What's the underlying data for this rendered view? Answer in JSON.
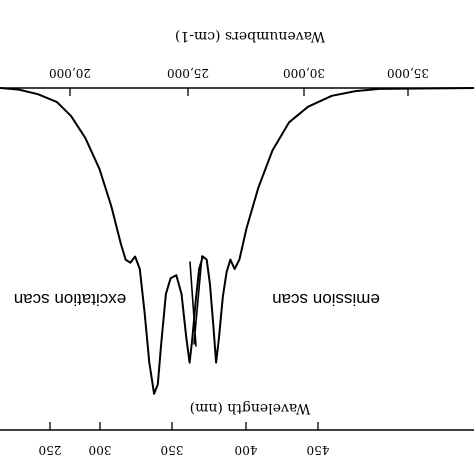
{
  "chart_data": {
    "type": "line",
    "top_axis": {
      "label": "Wavenumbers (cm-1)",
      "ticks": [
        "20,000",
        "25,000",
        "30,000",
        "35,000"
      ]
    },
    "bottom_axis": {
      "label": "Wavelength (nm)",
      "ticks": [
        "250",
        "300",
        "350",
        "400",
        "450"
      ]
    },
    "annotations": [
      "excitation scan",
      "emission scan"
    ],
    "series": [
      {
        "points": [
          [
            0.0,
            0.0
          ],
          [
            0.04,
            0.005
          ],
          [
            0.08,
            0.02
          ],
          [
            0.12,
            0.045
          ],
          [
            0.15,
            0.09
          ],
          [
            0.18,
            0.16
          ],
          [
            0.21,
            0.26
          ],
          [
            0.235,
            0.38
          ],
          [
            0.255,
            0.5
          ],
          [
            0.265,
            0.55
          ],
          [
            0.275,
            0.56
          ],
          [
            0.285,
            0.54
          ],
          [
            0.295,
            0.58
          ],
          [
            0.305,
            0.72
          ],
          [
            0.315,
            0.88
          ],
          [
            0.325,
            0.98
          ],
          [
            0.333,
            0.95
          ],
          [
            0.34,
            0.82
          ],
          [
            0.35,
            0.66
          ],
          [
            0.36,
            0.61
          ],
          [
            0.372,
            0.6
          ],
          [
            0.383,
            0.66
          ],
          [
            0.393,
            0.8
          ],
          [
            0.4,
            0.88
          ],
          [
            0.406,
            0.8
          ],
          [
            0.413,
            0.68
          ],
          [
            0.42,
            0.58
          ],
          [
            0.428,
            0.54
          ],
          [
            0.436,
            0.55
          ],
          [
            0.443,
            0.63
          ],
          [
            0.45,
            0.76
          ],
          [
            0.456,
            0.88
          ],
          [
            0.462,
            0.8
          ],
          [
            0.47,
            0.67
          ],
          [
            0.478,
            0.59
          ],
          [
            0.486,
            0.55
          ],
          [
            0.495,
            0.58
          ],
          [
            0.505,
            0.55
          ],
          [
            0.52,
            0.45
          ],
          [
            0.545,
            0.32
          ],
          [
            0.575,
            0.2
          ],
          [
            0.61,
            0.11
          ],
          [
            0.65,
            0.06
          ],
          [
            0.7,
            0.025
          ],
          [
            0.75,
            0.01
          ],
          [
            0.8,
            0.003
          ],
          [
            1.0,
            0.0
          ]
        ]
      }
    ]
  }
}
